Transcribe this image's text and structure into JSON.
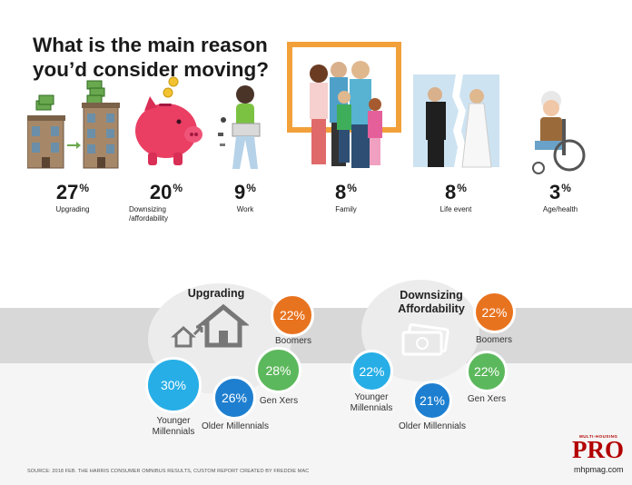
{
  "title_line1": "What is the main reason",
  "title_line2": "you’d consider moving?",
  "chart_data": [
    {
      "type": "bar",
      "categories": [
        "Upgrading",
        "Downsizing /affordability",
        "Work",
        "Family",
        "Life event",
        "Age/health"
      ],
      "values": [
        27,
        20,
        9,
        8,
        8,
        3
      ],
      "unit": "%"
    },
    {
      "type": "table",
      "title": "Upgrading",
      "categories": [
        "Boomers",
        "Gen Xers",
        "Older Millennials",
        "Younger Millennials"
      ],
      "values": [
        22,
        28,
        26,
        30
      ],
      "unit": "%"
    },
    {
      "type": "table",
      "title": "Downsizing Affordability",
      "categories": [
        "Boomers",
        "Gen Xers",
        "Older Millennials",
        "Younger Millennials"
      ],
      "values": [
        22,
        22,
        21,
        22
      ],
      "unit": "%"
    }
  ],
  "reasons": [
    {
      "value": "27",
      "pct_sign": "%",
      "label": "Upgrading"
    },
    {
      "value": "20",
      "pct_sign": "%",
      "label": "Downsizing",
      "label2": "/affordability"
    },
    {
      "value": "9",
      "pct_sign": "%",
      "label": "Work"
    },
    {
      "value": "8",
      "pct_sign": "%",
      "label": "Family"
    },
    {
      "value": "8",
      "pct_sign": "%",
      "label": "Life event"
    },
    {
      "value": "3",
      "pct_sign": "%",
      "label": "Age/health"
    }
  ],
  "upgrading": {
    "title": "Upgrading",
    "boomers": {
      "value": "22%",
      "label": "Boomers"
    },
    "genx": {
      "value": "28%",
      "label": "Gen Xers"
    },
    "older": {
      "value": "26%",
      "label": "Older Millennials"
    },
    "younger": {
      "value": "30%",
      "label1": "Younger",
      "label2": "Millennials"
    }
  },
  "downsizing": {
    "title1": "Downsizing",
    "title2": "Affordability",
    "boomers": {
      "value": "22%",
      "label": "Boomers"
    },
    "genx": {
      "value": "22%",
      "label": "Gen Xers"
    },
    "older": {
      "value": "21%",
      "label": "Older Millennials"
    },
    "younger": {
      "value": "22%",
      "label1": "Younger",
      "label2": "Millennials"
    }
  },
  "colors": {
    "orange": "#e8731f",
    "green": "#5cb85c",
    "blue": "#1e7fd0",
    "cyan": "#27aee6",
    "brand_red": "#b30000"
  },
  "source": "SOURCE: 2018 FEB. THE HARRIS CONSUMER OMNIBUS RESULTS, CUSTOM REPORT CREATED BY FREDDIE MAC",
  "brand": {
    "top": "MULTI-HOUSING",
    "name": "PRO",
    "url": "mhpmag.com"
  }
}
